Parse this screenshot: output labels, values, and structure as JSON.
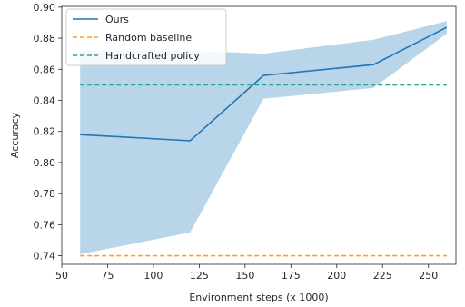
{
  "chart_data": {
    "type": "line",
    "title": "",
    "xlabel": "Environment steps (x 1000)",
    "ylabel": "Accuracy",
    "xlim": [
      50,
      265
    ],
    "ylim": [
      0.7345,
      0.9005
    ],
    "xticks": [
      50,
      75,
      100,
      125,
      150,
      175,
      200,
      225,
      250
    ],
    "yticks": [
      0.74,
      0.76,
      0.78,
      0.8,
      0.82,
      0.84,
      0.86,
      0.88,
      0.9
    ],
    "ytick_labels": [
      "0.74",
      "0.76",
      "0.78",
      "0.80",
      "0.82",
      "0.84",
      "0.86",
      "0.88",
      "0.90"
    ],
    "grid": false,
    "legend_position": "top-left",
    "series": [
      {
        "name": "Ours",
        "style": "solid",
        "color": "#1f77b4",
        "x": [
          60,
          120,
          160,
          220,
          260
        ],
        "y": [
          0.818,
          0.814,
          0.856,
          0.863,
          0.887
        ],
        "band_lower": [
          0.741,
          0.755,
          0.841,
          0.848,
          0.883
        ],
        "band_upper": [
          0.872,
          0.872,
          0.87,
          0.879,
          0.891
        ],
        "band_color": "#b9d5ea"
      },
      {
        "name": "Random baseline",
        "style": "dashed",
        "color": "#ff9f1c",
        "x": [
          60,
          260
        ],
        "y": [
          0.74,
          0.74
        ]
      },
      {
        "name": "Handcrafted policy",
        "style": "dashed",
        "color": "#2ca58d",
        "x": [
          60,
          260
        ],
        "y": [
          0.85,
          0.85
        ]
      }
    ]
  }
}
